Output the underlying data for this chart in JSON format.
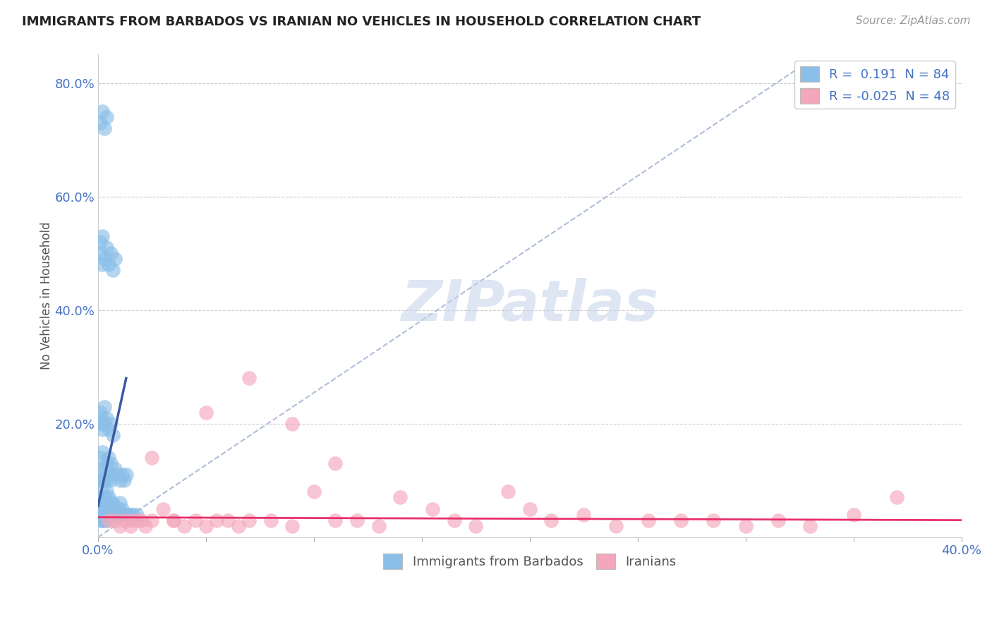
{
  "title": "IMMIGRANTS FROM BARBADOS VS IRANIAN NO VEHICLES IN HOUSEHOLD CORRELATION CHART",
  "source": "Source: ZipAtlas.com",
  "ylabel": "No Vehicles in Household",
  "xlim": [
    0.0,
    0.4
  ],
  "ylim": [
    0.0,
    0.85
  ],
  "xtick_positions": [
    0.0,
    0.05,
    0.1,
    0.15,
    0.2,
    0.25,
    0.3,
    0.35,
    0.4
  ],
  "xtick_labels": [
    "0.0%",
    "",
    "",
    "",
    "",
    "",
    "",
    "",
    "40.0%"
  ],
  "ytick_positions": [
    0.0,
    0.2,
    0.4,
    0.6,
    0.8
  ],
  "ytick_labels": [
    "",
    "20.0%",
    "40.0%",
    "60.0%",
    "80.0%"
  ],
  "legend1_R": " 0.191",
  "legend1_N": "84",
  "legend2_R": "-0.025",
  "legend2_N": "48",
  "blue_color": "#8BBFE8",
  "pink_color": "#F4A7BC",
  "blue_line_color": "#3A5BA0",
  "pink_line_color": "#E8306A",
  "dash_line_color": "#9BADD0",
  "watermark_color": "#C8D4EC",
  "watermark_text": "ZIPatlas",
  "blue_scatter_x": [
    0.001,
    0.001,
    0.001,
    0.001,
    0.001,
    0.002,
    0.002,
    0.002,
    0.002,
    0.002,
    0.003,
    0.003,
    0.003,
    0.003,
    0.004,
    0.004,
    0.004,
    0.004,
    0.005,
    0.005,
    0.005,
    0.006,
    0.006,
    0.006,
    0.007,
    0.007,
    0.007,
    0.008,
    0.008,
    0.009,
    0.009,
    0.01,
    0.01,
    0.011,
    0.012,
    0.013,
    0.014,
    0.015,
    0.016,
    0.018,
    0.001,
    0.001,
    0.001,
    0.002,
    0.002,
    0.003,
    0.003,
    0.004,
    0.004,
    0.005,
    0.005,
    0.006,
    0.006,
    0.007,
    0.008,
    0.009,
    0.01,
    0.011,
    0.012,
    0.013,
    0.001,
    0.001,
    0.002,
    0.002,
    0.003,
    0.003,
    0.004,
    0.005,
    0.006,
    0.007,
    0.001,
    0.001,
    0.002,
    0.002,
    0.003,
    0.004,
    0.005,
    0.006,
    0.007,
    0.008,
    0.001,
    0.002,
    0.003,
    0.004
  ],
  "blue_scatter_y": [
    0.03,
    0.04,
    0.05,
    0.06,
    0.07,
    0.03,
    0.04,
    0.05,
    0.06,
    0.08,
    0.03,
    0.04,
    0.05,
    0.07,
    0.03,
    0.05,
    0.06,
    0.08,
    0.04,
    0.05,
    0.07,
    0.04,
    0.05,
    0.06,
    0.04,
    0.05,
    0.06,
    0.04,
    0.05,
    0.04,
    0.05,
    0.04,
    0.06,
    0.05,
    0.04,
    0.04,
    0.04,
    0.04,
    0.04,
    0.04,
    0.1,
    0.12,
    0.14,
    0.1,
    0.15,
    0.1,
    0.12,
    0.1,
    0.13,
    0.11,
    0.14,
    0.1,
    0.13,
    0.11,
    0.12,
    0.11,
    0.1,
    0.11,
    0.1,
    0.11,
    0.2,
    0.22,
    0.19,
    0.21,
    0.2,
    0.23,
    0.21,
    0.19,
    0.2,
    0.18,
    0.5,
    0.52,
    0.48,
    0.53,
    0.49,
    0.51,
    0.48,
    0.5,
    0.47,
    0.49,
    0.73,
    0.75,
    0.72,
    0.74
  ],
  "pink_scatter_x": [
    0.005,
    0.008,
    0.01,
    0.012,
    0.015,
    0.018,
    0.02,
    0.022,
    0.025,
    0.03,
    0.035,
    0.04,
    0.045,
    0.05,
    0.055,
    0.06,
    0.065,
    0.07,
    0.08,
    0.09,
    0.1,
    0.11,
    0.12,
    0.13,
    0.14,
    0.155,
    0.165,
    0.175,
    0.19,
    0.2,
    0.21,
    0.225,
    0.24,
    0.255,
    0.27,
    0.285,
    0.3,
    0.315,
    0.33,
    0.35,
    0.37,
    0.015,
    0.025,
    0.035,
    0.05,
    0.07,
    0.09,
    0.11
  ],
  "pink_scatter_y": [
    0.03,
    0.03,
    0.02,
    0.03,
    0.02,
    0.03,
    0.03,
    0.02,
    0.14,
    0.05,
    0.03,
    0.02,
    0.03,
    0.02,
    0.03,
    0.03,
    0.02,
    0.03,
    0.03,
    0.02,
    0.08,
    0.03,
    0.03,
    0.02,
    0.07,
    0.05,
    0.03,
    0.02,
    0.08,
    0.05,
    0.03,
    0.04,
    0.02,
    0.03,
    0.03,
    0.03,
    0.02,
    0.03,
    0.02,
    0.04,
    0.07,
    0.03,
    0.03,
    0.03,
    0.22,
    0.28,
    0.2,
    0.13
  ],
  "blue_line_x": [
    0.0,
    0.013
  ],
  "blue_line_y": [
    0.055,
    0.28
  ],
  "dash_line_x": [
    0.0,
    0.33
  ],
  "dash_line_y": [
    0.0,
    0.84
  ],
  "pink_line_x": [
    0.0,
    0.4
  ],
  "pink_line_y": [
    0.035,
    0.03
  ]
}
